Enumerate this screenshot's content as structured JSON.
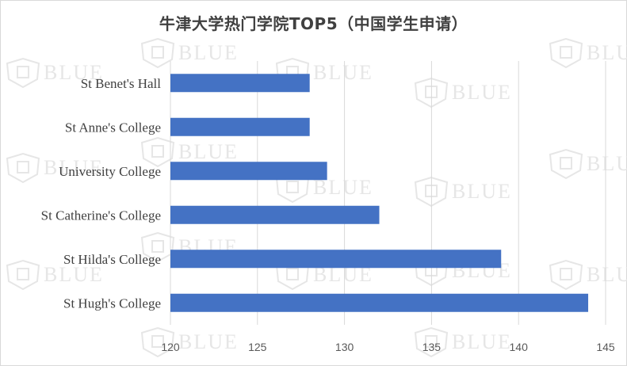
{
  "chart_data": {
    "type": "bar",
    "orientation": "horizontal",
    "title": "牛津大学热门学院TOP5（中国学生申请）",
    "categories": [
      "St Benet's Hall",
      "St Anne's College",
      "University College",
      "St Catherine's College",
      "St Hilda's College",
      "St Hugh's College"
    ],
    "values": [
      128,
      128,
      129,
      132,
      139,
      144
    ],
    "xlim": [
      120,
      145
    ],
    "xticks": [
      120,
      125,
      130,
      135,
      140,
      145
    ],
    "grid": true,
    "bar_color": "#4472c4"
  },
  "watermark": {
    "text": "BLUE",
    "icon": "shield-logo-icon"
  }
}
